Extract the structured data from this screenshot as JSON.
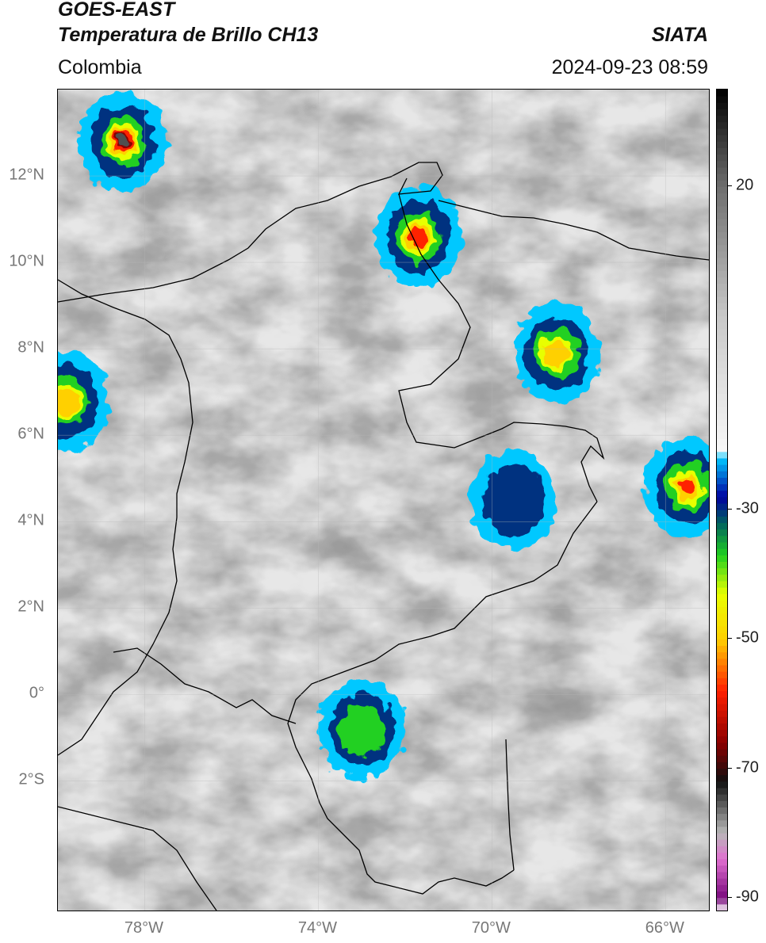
{
  "header": {
    "satellite": "GOES-EAST",
    "product": "Temperatura de Brillo CH13",
    "brand": "SIATA",
    "region": "Colombia",
    "timestamp": "2024-09-23 08:59"
  },
  "map": {
    "lat_range": [
      -5,
      14
    ],
    "lon_range": [
      -80,
      -65
    ],
    "lat_ticks": [
      {
        "value": 12,
        "label": "12°N"
      },
      {
        "value": 10,
        "label": "10°N"
      },
      {
        "value": 8,
        "label": "8°N"
      },
      {
        "value": 6,
        "label": "6°N"
      },
      {
        "value": 4,
        "label": "4°N"
      },
      {
        "value": 2,
        "label": "2°N"
      },
      {
        "value": 0,
        "label": "0°"
      },
      {
        "value": -2,
        "label": "2°S"
      }
    ],
    "lon_ticks": [
      {
        "value": -78,
        "label": "78°W"
      },
      {
        "value": -74,
        "label": "74°W"
      },
      {
        "value": -70,
        "label": "70°W"
      },
      {
        "value": -66,
        "label": "66°W"
      }
    ],
    "grid": true
  },
  "colorbar": {
    "range": [
      -92,
      35
    ],
    "ticks": [
      {
        "value": 20,
        "label": "20"
      },
      {
        "value": -30,
        "label": "-30"
      },
      {
        "value": -50,
        "label": "-50"
      },
      {
        "value": -70,
        "label": "-70"
      },
      {
        "value": -90,
        "label": "-90"
      }
    ],
    "stops": [
      {
        "value": -92,
        "color": "#ffffff"
      },
      {
        "value": -90,
        "color": "#7a0a7e"
      },
      {
        "value": -84,
        "color": "#e070d0"
      },
      {
        "value": -80,
        "color": "#b8b8b8"
      },
      {
        "value": -72,
        "color": "#101010"
      },
      {
        "value": -66,
        "color": "#8b0000"
      },
      {
        "value": -58,
        "color": "#ff2000"
      },
      {
        "value": -50,
        "color": "#ffd000"
      },
      {
        "value": -43,
        "color": "#e8ff00"
      },
      {
        "value": -37,
        "color": "#20d020"
      },
      {
        "value": -32,
        "color": "#006060"
      },
      {
        "value": -28,
        "color": "#0000a0"
      },
      {
        "value": -22,
        "color": "#00c8ff"
      },
      {
        "value": -21,
        "color": "#f8f8f8"
      },
      {
        "value": 0,
        "color": "#c8c8c8"
      },
      {
        "value": 20,
        "color": "#6e6e6e"
      },
      {
        "value": 35,
        "color": "#000000"
      }
    ]
  },
  "convective_cells": [
    {
      "name": "cell-caribbean-nw",
      "lon": -78.5,
      "lat": 12.8,
      "min_temp": -75
    },
    {
      "name": "cell-guajira",
      "lon": -71.7,
      "lat": 10.6,
      "min_temp": -65
    },
    {
      "name": "cell-venezuela-llanos",
      "lon": -68.5,
      "lat": 7.9,
      "min_temp": -55
    },
    {
      "name": "cell-orinoco-east",
      "lon": -65.5,
      "lat": 4.8,
      "min_temp": -65
    },
    {
      "name": "cell-meta",
      "lon": -69.5,
      "lat": 4.5,
      "min_temp": -30
    },
    {
      "name": "cell-pacific-west",
      "lon": -79.8,
      "lat": 6.8,
      "min_temp": -50
    },
    {
      "name": "cell-caqueta",
      "lon": -73,
      "lat": -0.8,
      "min_temp": -38
    }
  ]
}
